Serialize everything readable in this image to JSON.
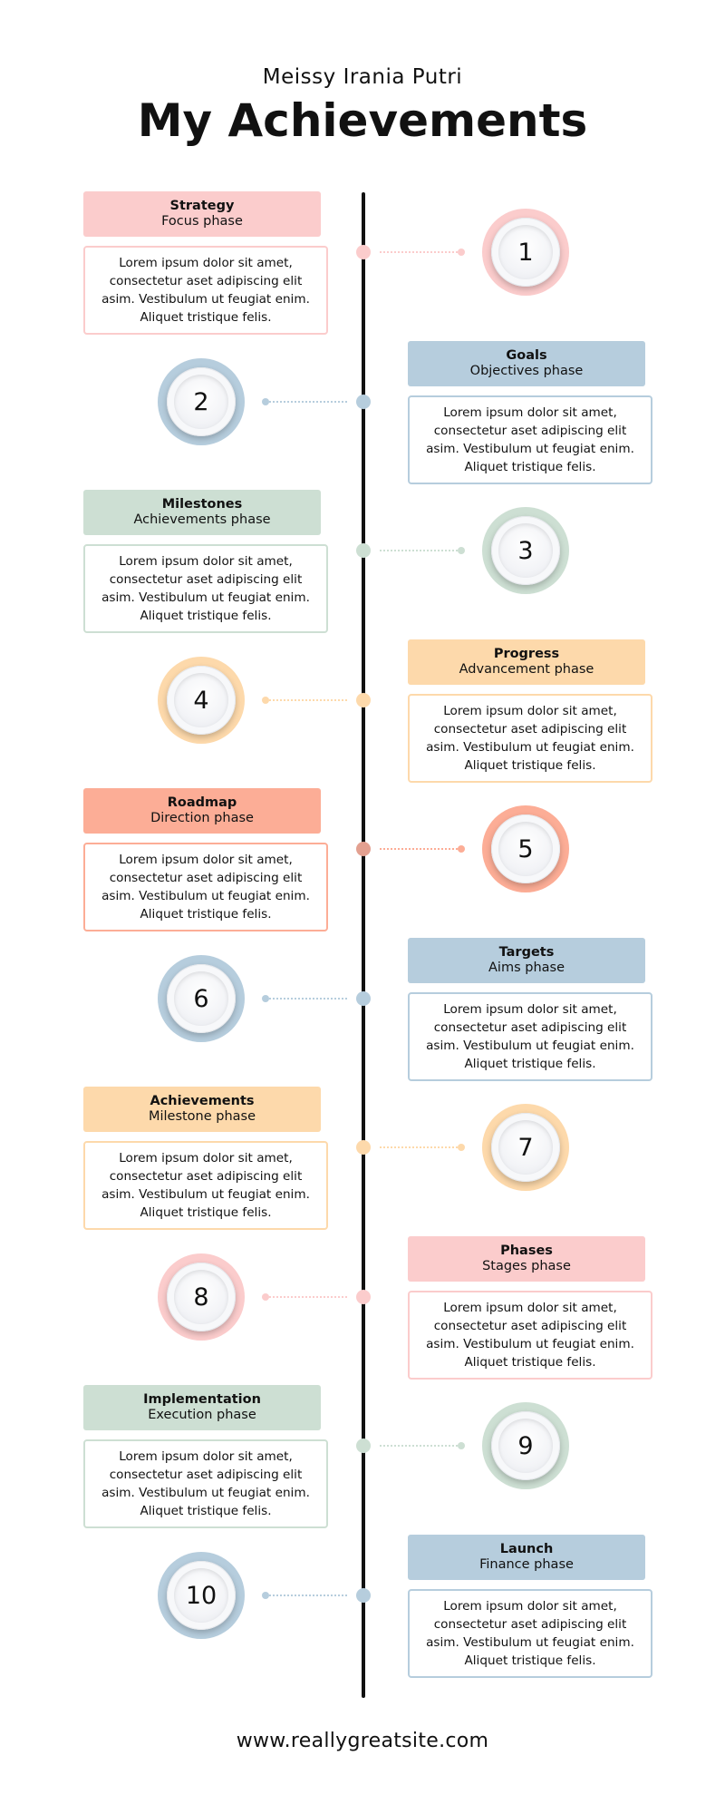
{
  "header": {
    "subtitle": "Meissy Irania Putri",
    "title": "My Achievements"
  },
  "footer": {
    "url": "www.reallygreatsite.com"
  },
  "colors": {
    "pink": "#fbcccc",
    "blue": "#b6cddd",
    "green": "#cddfd3",
    "orange": "#fdd9ab",
    "salmon": "#fcad96",
    "salmon_dot": "#e3a090",
    "spine": "#111111"
  },
  "steps": [
    {
      "number": "1",
      "title": "Strategy",
      "phase": "Focus phase",
      "body": "Lorem ipsum dolor sit amet, consectetur aset adipiscing elit asim. Vestibulum ut feugiat enim. Aliquet tristique felis.",
      "color": "pink",
      "text_side": "left"
    },
    {
      "number": "2",
      "title": "Goals",
      "phase": "Objectives phase",
      "body": "Lorem ipsum dolor sit amet, consectetur aset adipiscing elit asim. Vestibulum ut feugiat enim. Aliquet tristique felis.",
      "color": "blue",
      "text_side": "right"
    },
    {
      "number": "3",
      "title": "Milestones",
      "phase": "Achievements phase",
      "body": "Lorem ipsum dolor sit amet, consectetur aset adipiscing elit asim. Vestibulum ut feugiat enim. Aliquet tristique felis.",
      "color": "green",
      "text_side": "left"
    },
    {
      "number": "4",
      "title": "Progress",
      "phase": "Advancement phase",
      "body": "Lorem ipsum dolor sit amet, consectetur aset adipiscing elit asim. Vestibulum ut feugiat enim. Aliquet tristique felis.",
      "color": "orange",
      "text_side": "right"
    },
    {
      "number": "5",
      "title": "Roadmap",
      "phase": "Direction phase",
      "body": "Lorem ipsum dolor sit amet, consectetur aset adipiscing elit asim. Vestibulum ut feugiat enim. Aliquet tristique felis.",
      "color": "salmon",
      "text_side": "left"
    },
    {
      "number": "6",
      "title": "Targets",
      "phase": "Aims phase",
      "body": "Lorem ipsum dolor sit amet, consectetur aset adipiscing elit asim. Vestibulum ut feugiat enim. Aliquet tristique felis.",
      "color": "blue",
      "text_side": "right"
    },
    {
      "number": "7",
      "title": "Achievements",
      "phase": "Milestone phase",
      "body": "Lorem ipsum dolor sit amet, consectetur aset adipiscing elit asim. Vestibulum ut feugiat enim. Aliquet tristique felis.",
      "color": "orange",
      "text_side": "left"
    },
    {
      "number": "8",
      "title": "Phases",
      "phase": "Stages phase",
      "body": "Lorem ipsum dolor sit amet, consectetur aset adipiscing elit asim. Vestibulum ut feugiat enim. Aliquet tristique felis.",
      "color": "pink",
      "text_side": "right"
    },
    {
      "number": "9",
      "title": "Implementation",
      "phase": "Execution phase",
      "body": "Lorem ipsum dolor sit amet, consectetur aset adipiscing elit asim. Vestibulum ut feugiat enim. Aliquet tristique felis.",
      "color": "green",
      "text_side": "left"
    },
    {
      "number": "10",
      "title": "Launch",
      "phase": "Finance phase",
      "body": "Lorem ipsum dolor sit amet, consectetur aset adipiscing elit asim. Vestibulum ut feugiat enim. Aliquet tristique felis.",
      "color": "blue",
      "text_side": "right"
    }
  ]
}
